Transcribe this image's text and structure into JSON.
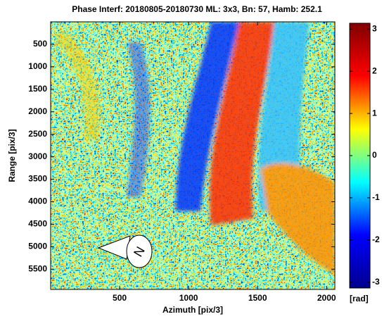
{
  "chart_data": {
    "type": "image",
    "title": "Phase Interf: 20180805-20180730 ML: 3x3, Bn: 57, Hamb: 252.1",
    "x_label": "Azimuth [pix/3]",
    "y_label": "Range [pix/3]",
    "xlim": [
      0,
      2060
    ],
    "xticks": [
      500,
      1000,
      1500,
      2000
    ],
    "ylim": [
      0,
      5950
    ],
    "yticks": [
      500,
      1000,
      1500,
      2000,
      2500,
      3000,
      3500,
      4000,
      4500,
      5000,
      5500
    ],
    "colorbar": {
      "label": "[rad]",
      "lim": [
        -3.14,
        3.14
      ],
      "ticks": [
        3,
        2,
        1,
        0,
        -1,
        -2,
        -3
      ],
      "colors": [
        "#00008f",
        "#0000ff",
        "#00ffff",
        "#ffff00",
        "#ff0000",
        "#800000"
      ]
    },
    "annotation": "N"
  }
}
